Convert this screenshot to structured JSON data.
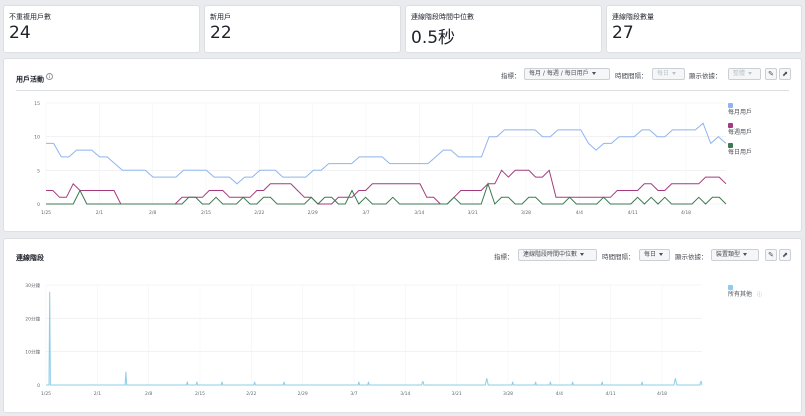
{
  "stats": [
    {
      "label": "不重複用戶數",
      "value": "24"
    },
    {
      "label": "新用戶",
      "value": "22"
    },
    {
      "label": "連線階段時間中位數",
      "value": "0.5秒"
    },
    {
      "label": "連線階段數量",
      "value": "27"
    }
  ],
  "activity_panel": {
    "title": "用戶活動",
    "metric_label": "指標：",
    "metric_value": "每月 / 每週 / 每日用戶",
    "interval_label": "時間間隔：",
    "interval_value": "每日",
    "display_label": "顯示依據：",
    "display_value": "整體"
  },
  "sessions_panel": {
    "title": "連線階段",
    "metric_label": "指標：",
    "metric_value": "連線階段時間中位數",
    "interval_label": "時間間隔：",
    "interval_value": "每日",
    "display_label": "顯示依據：",
    "display_value": "裝置類型"
  },
  "colors": {
    "monthly": "#8fb4ee",
    "weekly": "#a53a7c",
    "daily": "#3c7a52",
    "others": "#8ecde8"
  },
  "chart_data": [
    {
      "type": "line",
      "x_ticks": [
        "1/25",
        "2/1",
        "2/8",
        "2/15",
        "2/22",
        "2/29",
        "3/7",
        "3/14",
        "3/21",
        "3/28",
        "4/4",
        "4/11",
        "4/18"
      ],
      "ylim": [
        0,
        15
      ],
      "y_ticks": [
        "15",
        "10",
        "5",
        "0"
      ],
      "grid": true,
      "legend_position": "right",
      "series": [
        {
          "name": "每月用戶",
          "color": "#8fb4ee",
          "values": [
            9,
            9,
            7,
            7,
            8,
            8,
            8,
            7,
            7,
            6,
            5,
            5,
            5,
            5,
            4,
            4,
            4,
            4,
            5,
            5,
            5,
            5,
            4,
            4,
            4,
            3,
            4,
            4,
            5,
            5,
            5,
            4,
            4,
            4,
            4,
            5,
            5,
            6,
            6,
            6,
            6,
            7,
            7,
            7,
            7,
            6,
            6,
            6,
            6,
            6,
            6,
            7,
            8,
            8,
            7,
            7,
            7,
            7,
            10,
            10,
            11,
            11,
            11,
            11,
            11,
            10,
            10,
            11,
            11,
            11,
            11,
            9,
            8,
            9,
            9,
            10,
            10,
            10,
            11,
            11,
            10,
            10,
            11,
            11,
            11,
            11,
            12,
            9,
            10,
            9
          ]
        },
        {
          "name": "每週用戶",
          "color": "#a53a7c",
          "values": [
            2,
            2,
            1,
            1,
            3,
            2,
            2,
            2,
            2,
            2,
            2,
            0,
            0,
            0,
            0,
            0,
            0,
            0,
            0,
            0,
            1,
            1,
            1,
            1,
            2,
            2,
            2,
            1,
            1,
            1,
            1,
            2,
            2,
            3,
            3,
            3,
            3,
            2,
            1,
            1,
            0,
            0,
            0,
            1,
            1,
            1,
            2,
            2,
            3,
            3,
            3,
            3,
            3,
            3,
            3,
            3,
            1,
            1,
            0,
            0,
            1,
            2,
            2,
            2,
            2,
            3,
            3,
            5,
            4,
            5,
            5,
            5,
            4,
            4,
            5,
            1,
            1,
            1,
            1,
            1,
            1,
            1,
            1,
            1,
            2,
            2,
            2,
            2,
            3,
            3,
            2,
            2,
            3,
            3,
            3,
            3,
            3,
            4,
            4,
            4,
            3
          ]
        },
        {
          "name": "每日用戶",
          "color": "#3c7a52",
          "values": [
            0,
            0,
            0,
            0,
            0,
            2,
            0,
            0,
            0,
            0,
            0,
            0,
            0,
            0,
            0,
            0,
            0,
            0,
            0,
            0,
            0,
            1,
            1,
            0,
            0,
            1,
            0,
            0,
            0,
            1,
            0,
            0,
            1,
            1,
            0,
            0,
            0,
            0,
            0,
            1,
            0,
            1,
            1,
            0,
            0,
            2,
            0,
            1,
            0,
            0,
            0,
            1,
            0,
            0,
            0,
            0,
            0,
            0,
            0,
            0,
            1,
            0,
            0,
            0,
            0,
            3,
            0,
            1,
            1,
            0,
            0,
            1,
            1,
            0,
            0,
            0,
            0,
            1,
            0,
            0,
            0,
            0,
            1,
            0,
            0,
            0,
            0,
            1,
            0,
            1,
            0,
            1,
            0,
            0,
            0,
            0,
            1,
            0,
            1,
            1,
            0
          ]
        }
      ]
    },
    {
      "type": "line",
      "x_ticks": [
        "1/25",
        "2/1",
        "2/8",
        "2/15",
        "2/22",
        "2/29",
        "3/7",
        "3/14",
        "3/21",
        "3/28",
        "4/4",
        "4/11",
        "4/18"
      ],
      "ylim": [
        0,
        30
      ],
      "y_ticks": [
        "30分鐘",
        "20分鐘",
        "10分鐘",
        "0"
      ],
      "grid": true,
      "legend_position": "right",
      "series": [
        {
          "name": "所有其他",
          "color": "#8ecde8",
          "values": [
            0,
            0,
            0,
            0,
            0,
            28,
            0,
            0,
            0,
            0,
            0,
            0,
            0,
            0,
            0,
            0,
            0,
            0,
            0,
            0,
            0,
            0,
            0,
            0,
            0,
            0,
            0,
            0,
            0,
            0,
            0,
            0,
            0,
            0,
            0,
            0,
            0,
            0,
            0,
            0,
            0,
            0,
            0,
            0,
            0,
            0,
            0,
            0,
            0,
            0,
            0,
            0,
            0,
            0,
            0,
            0,
            0,
            0,
            0,
            0,
            0,
            0,
            0,
            0,
            0,
            0,
            0,
            0,
            0,
            0,
            0,
            0,
            0,
            0,
            0,
            0,
            0,
            0,
            0,
            0,
            0,
            0,
            0,
            0,
            0,
            0,
            0,
            0,
            0,
            0,
            0,
            0,
            0,
            0,
            0,
            0,
            0,
            0,
            0,
            0,
            0,
            0,
            0,
            0,
            0,
            0,
            0,
            0,
            4,
            0,
            0,
            0,
            0,
            0,
            0,
            0,
            0,
            0,
            0,
            0,
            0,
            0,
            0,
            0,
            0,
            0,
            0,
            0,
            0,
            0,
            0,
            0,
            0,
            0,
            0,
            0,
            0,
            0,
            0,
            0,
            0,
            0,
            0,
            0,
            0,
            0,
            0,
            0,
            0,
            0,
            0,
            0,
            0,
            0,
            0,
            0,
            0,
            0,
            0,
            0,
            0,
            0,
            0,
            0,
            0,
            0,
            0,
            0,
            0,
            0,
            0,
            0,
            0,
            0,
            0,
            0,
            0,
            0,
            0,
            0,
            0,
            0,
            0,
            0,
            0,
            0,
            0,
            0,
            0,
            0,
            0,
            1,
            0,
            0,
            0,
            0,
            0,
            0,
            0,
            0,
            0,
            0,
            0,
            0,
            1,
            0,
            0,
            0,
            0,
            0,
            0,
            0,
            0,
            0,
            0,
            0,
            0,
            0,
            0,
            0,
            0,
            0,
            0,
            0,
            0,
            0,
            0,
            0,
            0,
            0,
            0,
            0,
            0,
            0,
            0,
            0,
            0,
            0,
            1,
            0,
            0,
            0,
            0,
            0,
            0,
            0,
            0,
            0,
            0,
            0,
            0,
            0,
            0,
            0,
            0,
            0,
            0,
            0,
            0,
            0,
            0,
            0,
            0,
            0,
            0,
            0,
            0,
            0,
            0,
            0,
            0,
            0,
            0,
            0,
            0,
            0,
            0,
            0,
            0,
            0,
            0,
            0,
            1,
            0,
            0,
            0,
            0,
            0,
            0,
            0,
            0,
            0,
            0,
            0,
            0,
            0,
            0,
            0,
            0,
            0,
            0,
            0,
            0,
            0,
            0,
            0,
            0,
            0,
            0,
            0,
            0,
            0,
            0,
            0,
            0,
            0,
            0,
            0,
            0,
            0,
            0,
            0,
            1,
            0,
            0,
            0,
            0,
            0,
            0,
            0,
            0,
            0,
            0,
            0,
            0,
            0,
            0,
            0,
            0,
            0,
            0,
            0,
            0,
            0,
            0,
            0,
            0,
            0,
            0,
            0,
            0,
            0,
            0,
            0,
            0,
            0,
            0,
            0,
            0,
            0,
            0,
            0,
            0,
            0,
            0,
            0,
            0,
            0,
            0,
            0,
            0,
            0,
            0,
            0,
            0,
            0,
            0,
            0,
            0,
            0,
            0,
            0,
            0,
            0,
            0,
            0,
            0,
            0,
            0,
            0,
            0,
            0,
            0,
            0,
            0,
            0,
            0,
            0,
            0,
            0,
            0,
            0,
            0,
            0,
            0,
            0,
            0,
            0,
            0,
            0,
            0,
            0,
            0,
            0,
            0,
            0,
            0,
            0,
            0,
            0,
            0,
            0,
            0,
            1,
            0,
            0,
            0,
            0,
            0,
            0,
            0,
            0,
            0,
            0,
            0,
            0,
            1,
            0,
            0,
            0,
            0,
            0,
            0,
            0,
            0,
            0,
            0,
            0,
            0,
            0,
            0,
            0,
            0,
            0,
            0,
            0,
            0,
            0,
            0,
            0,
            0,
            0,
            0,
            0,
            0,
            0,
            0,
            0,
            0,
            0,
            0,
            0,
            0,
            0,
            0,
            0,
            0,
            0,
            0,
            0,
            0,
            0,
            0,
            0,
            0,
            0,
            0,
            0,
            0,
            0,
            0,
            0,
            0,
            0,
            0,
            0,
            0,
            0,
            0,
            0,
            0,
            0,
            0,
            0,
            0,
            0,
            0,
            0,
            0,
            1,
            1,
            0,
            0,
            0,
            0,
            0,
            0,
            0,
            0,
            0,
            0,
            0,
            0,
            0,
            0,
            0,
            0,
            0,
            0,
            0,
            0,
            0,
            0,
            0,
            0,
            0,
            0,
            0,
            0,
            0,
            0,
            0,
            0,
            0,
            0,
            0,
            0,
            0,
            0,
            0,
            0,
            0,
            0,
            0,
            0,
            0,
            0,
            0,
            0,
            0,
            0,
            0,
            0,
            0,
            0,
            0,
            0,
            0,
            0,
            0,
            0,
            0,
            0,
            0,
            0,
            0,
            0,
            0,
            0,
            0,
            0,
            0,
            0,
            0,
            0,
            0,
            0,
            0,
            0,
            0,
            0,
            0,
            0,
            0,
            0,
            1,
            2,
            1,
            0,
            0,
            0,
            0,
            0,
            0,
            0,
            0,
            0,
            0,
            0,
            0,
            0,
            0,
            0,
            0,
            0,
            0,
            0,
            0,
            0,
            0,
            0,
            0,
            0,
            0,
            0,
            0,
            0,
            0,
            0,
            0,
            0,
            1,
            0,
            0,
            0,
            0,
            0,
            0,
            0,
            0,
            0,
            0,
            0,
            0,
            0,
            0,
            0,
            0,
            0,
            0,
            0,
            0,
            0,
            0,
            0,
            0,
            0,
            0,
            0,
            0,
            0,
            0,
            1,
            0,
            0,
            0,
            0,
            0,
            0,
            0,
            0,
            0,
            0,
            0,
            0,
            0,
            0,
            0,
            0,
            0,
            0,
            0,
            1,
            0,
            0,
            0,
            0,
            0,
            0,
            0,
            0,
            0,
            0,
            0,
            0,
            0,
            0,
            0,
            0,
            0,
            0,
            0,
            0,
            0,
            0,
            0,
            0,
            0,
            0,
            0,
            0,
            0,
            1,
            0,
            0,
            0,
            0,
            0,
            0,
            0,
            0,
            0,
            0,
            0,
            0,
            0,
            0,
            0,
            0,
            0,
            0,
            0,
            0,
            0,
            0,
            0,
            0,
            0,
            0,
            0,
            0,
            0,
            0,
            0,
            0,
            0,
            0,
            0,
            0,
            0,
            0,
            0,
            1,
            0,
            0,
            0,
            0,
            0,
            0,
            0,
            0,
            0,
            0,
            0,
            0,
            0,
            0,
            0,
            0,
            0,
            0,
            0,
            0,
            0,
            0,
            0,
            0,
            0,
            0,
            0,
            0,
            0,
            0,
            0,
            0,
            0,
            0,
            0,
            0,
            0,
            0,
            0,
            0,
            0,
            0,
            0,
            0,
            0,
            0,
            0,
            0,
            0,
            0,
            0,
            0,
            0,
            1,
            0,
            0,
            0,
            0,
            0,
            0,
            0,
            0,
            0,
            0,
            0,
            0,
            0,
            0,
            0,
            0,
            0,
            0,
            0,
            0,
            0,
            0,
            0,
            0,
            0,
            0,
            0,
            0,
            0,
            0,
            0,
            0,
            0,
            0,
            0,
            0,
            0,
            0,
            0,
            0,
            0,
            0,
            0,
            1,
            2,
            1,
            0,
            0,
            0,
            0,
            0,
            0,
            0,
            0,
            0,
            0,
            0,
            0,
            0,
            0,
            0,
            0,
            0,
            0,
            0,
            0,
            0,
            0,
            0,
            0,
            0,
            0,
            0,
            0,
            0,
            0,
            0,
            0,
            1,
            1,
            0
          ]
        }
      ]
    }
  ]
}
